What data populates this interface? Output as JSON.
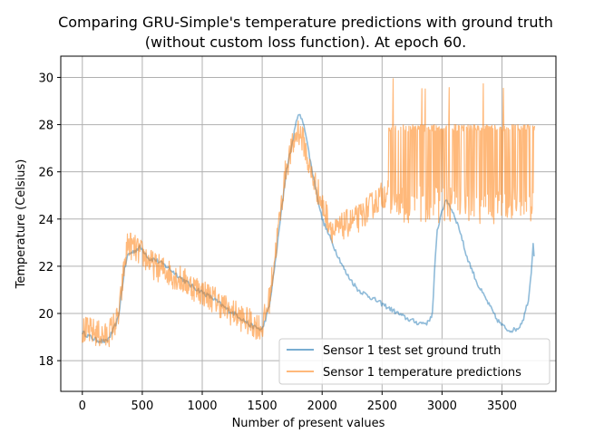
{
  "chart_data": {
    "type": "line",
    "title": "Comparing GRU-Simple's temperature predictions with ground truth",
    "subtitle": "(without custom loss function). At epoch 60.",
    "xlabel": "Number of present values",
    "ylabel": "Temperature (Celsius)",
    "xlim": [
      -180,
      3950
    ],
    "ylim": [
      16.7,
      30.9
    ],
    "xticks": [
      0,
      500,
      1000,
      1500,
      2000,
      2500,
      3000,
      3500
    ],
    "yticks": [
      18,
      20,
      22,
      24,
      26,
      28,
      30
    ],
    "grid": true,
    "legend_position": "lower-right",
    "series": [
      {
        "name": "Sensor 1 test set ground truth",
        "color": "#1f77b4",
        "noise": 0.1,
        "x": [
          0,
          100,
          200,
          250,
          300,
          320,
          350,
          380,
          420,
          480,
          520,
          560,
          600,
          700,
          800,
          900,
          1000,
          1100,
          1200,
          1300,
          1400,
          1500,
          1560,
          1600,
          1700,
          1750,
          1800,
          1850,
          1900,
          1950,
          2000,
          2100,
          2200,
          2300,
          2400,
          2500,
          2600,
          2700,
          2800,
          2880,
          2920,
          2940,
          2960,
          3000,
          3040,
          3060,
          3100,
          3150,
          3200,
          3300,
          3400,
          3450,
          3500,
          3550,
          3600,
          3640,
          3680,
          3720,
          3740,
          3760,
          3770,
          3775
        ],
        "values": [
          19.2,
          18.9,
          18.8,
          19.2,
          19.8,
          20.6,
          21.8,
          22.5,
          22.6,
          22.8,
          22.6,
          22.3,
          22.3,
          22.0,
          21.6,
          21.2,
          20.9,
          20.6,
          20.2,
          19.9,
          19.5,
          19.3,
          20.3,
          21.8,
          26.0,
          27.2,
          28.5,
          28.0,
          26.5,
          25.2,
          24.0,
          22.8,
          21.7,
          21.0,
          20.7,
          20.4,
          20.1,
          19.8,
          19.6,
          19.6,
          20.0,
          22.0,
          23.5,
          24.4,
          24.8,
          24.6,
          24.2,
          23.5,
          22.5,
          21.2,
          20.3,
          19.8,
          19.5,
          19.3,
          19.3,
          19.4,
          19.8,
          20.6,
          21.5,
          23.0,
          22.3,
          22.8
        ]
      },
      {
        "name": "Sensor 1 temperature predictions",
        "color": "#ff7f0e",
        "noise": 0.6,
        "x": [
          0,
          100,
          200,
          250,
          300,
          320,
          350,
          380,
          420,
          480,
          520,
          560,
          600,
          700,
          800,
          900,
          1000,
          1100,
          1200,
          1300,
          1400,
          1500,
          1560,
          1600,
          1700,
          1750,
          1800,
          1850,
          1900,
          1950,
          2000,
          2100,
          2200,
          2300,
          2400,
          2500,
          2600,
          2700,
          2800,
          2900,
          3000,
          3100,
          3200,
          3300,
          3400,
          3500,
          3600,
          3700,
          3775
        ],
        "values": [
          19.3,
          19.2,
          19.0,
          19.4,
          19.8,
          20.6,
          22.0,
          23.0,
          22.8,
          22.6,
          22.4,
          22.2,
          22.0,
          21.8,
          21.5,
          21.2,
          20.9,
          20.6,
          20.2,
          19.9,
          19.6,
          19.4,
          20.6,
          22.2,
          26.2,
          27.0,
          27.8,
          27.2,
          26.0,
          25.4,
          24.6,
          23.4,
          23.8,
          24.0,
          24.5,
          25.0,
          25.4,
          25.6,
          25.8,
          26.0,
          26.5,
          26.0,
          26.0,
          26.0,
          26.0,
          26.0,
          26.0,
          26.0,
          28.0
        ]
      }
    ]
  }
}
